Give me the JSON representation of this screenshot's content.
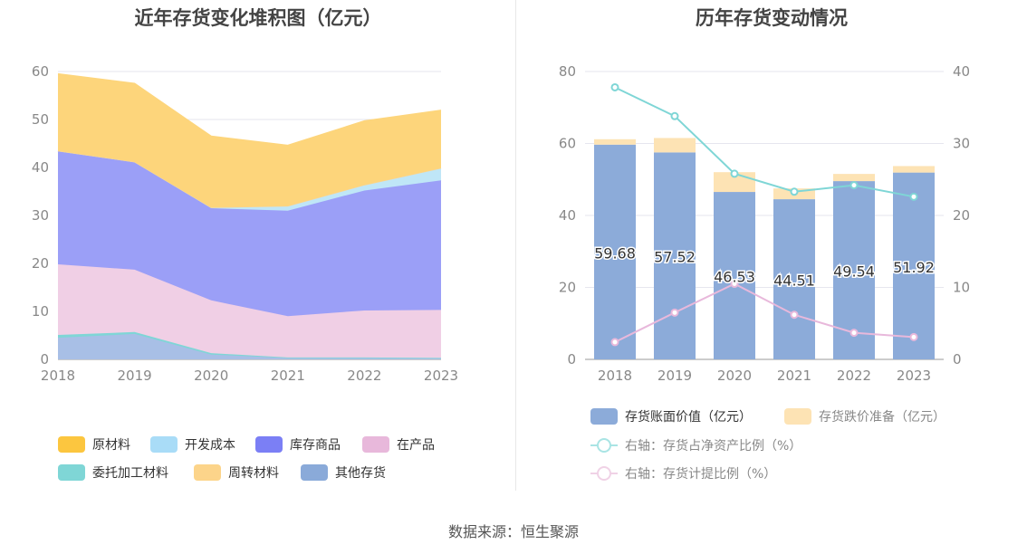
{
  "left_chart": {
    "title": "近年存货变化堆积图（亿元）",
    "legend": [
      {
        "label": "原材料",
        "color": "#fcc63f"
      },
      {
        "label": "开发成本",
        "color": "#a9dcf7"
      },
      {
        "label": "库存商品",
        "color": "#7b7ff5"
      },
      {
        "label": "在产品",
        "color": "#e8b8db"
      },
      {
        "label": "委托加工材料",
        "color": "#7fd6d6"
      },
      {
        "label": "周转材料",
        "color": "#fcd48a"
      },
      {
        "label": "其他存货",
        "color": "#8aaad9"
      }
    ]
  },
  "right_chart": {
    "title": "历年存货变动情况",
    "legend": [
      {
        "label": "存货账面价值（亿元）",
        "color": "#8cabd9"
      },
      {
        "label": "存货跌价准备（亿元）",
        "color": "#fde3b4"
      },
      {
        "label": "右轴：存货占净资产比例（%）",
        "color": "#7fd6d6"
      },
      {
        "label": "右轴：存货计提比例（%）",
        "color": "#e8b8db"
      }
    ]
  },
  "chart_data": [
    {
      "type": "area",
      "stacked": true,
      "title": "近年存货变化堆积图（亿元）",
      "x": [
        "2018",
        "2019",
        "2020",
        "2021",
        "2022",
        "2023"
      ],
      "ylim": [
        0,
        60
      ],
      "yticks": [
        0,
        10,
        20,
        30,
        40,
        50,
        60
      ],
      "grid": true,
      "legend_position": "bottom",
      "series": [
        {
          "name": "其他存货",
          "color": "#a8bfe6",
          "values": [
            4.5,
            5.3,
            1.0,
            0.3,
            0.3,
            0.2
          ]
        },
        {
          "name": "委托加工材料",
          "color": "#7fd6d6",
          "values": [
            0.6,
            0.4,
            0.3,
            0.1,
            0.1,
            0.1
          ]
        },
        {
          "name": "在产品",
          "color": "#f0cfe5",
          "values": [
            14.7,
            13.0,
            11.0,
            8.6,
            9.8,
            10.0
          ]
        },
        {
          "name": "库存商品",
          "color": "#9b9ff7",
          "values": [
            23.6,
            22.4,
            19.2,
            22.0,
            25.0,
            27.0
          ]
        },
        {
          "name": "开发成本",
          "color": "#bfe6f7",
          "values": [
            0.1,
            0.1,
            0.2,
            1.0,
            1.2,
            2.6
          ]
        },
        {
          "name": "周转材料",
          "color": "#fcd48a",
          "values": [
            0.0,
            0.0,
            0.0,
            0.0,
            0.0,
            0.0
          ]
        },
        {
          "name": "原材料",
          "color": "#fdd57b",
          "values": [
            16.0,
            16.3,
            14.8,
            12.6,
            13.3,
            12.0
          ]
        }
      ]
    },
    {
      "type": "bar",
      "stacked": true,
      "title": "历年存货变动情况",
      "categories": [
        "2018",
        "2019",
        "2020",
        "2021",
        "2022",
        "2023"
      ],
      "ylim": [
        0,
        80
      ],
      "yticks": [
        0,
        20,
        40,
        60,
        80
      ],
      "y2lim": [
        0,
        40
      ],
      "y2ticks": [
        0,
        10,
        20,
        30,
        40
      ],
      "grid": true,
      "legend_position": "bottom",
      "series": [
        {
          "name": "存货账面价值（亿元）",
          "axis": "left",
          "color": "#8cabd9",
          "values": [
            59.68,
            57.52,
            46.53,
            44.51,
            49.54,
            51.92
          ],
          "labels": [
            "59.68",
            "57.52",
            "46.53",
            "44.51",
            "49.54",
            "51.92"
          ]
        },
        {
          "name": "存货跌价准备（亿元）",
          "axis": "left",
          "color": "#fde3b4",
          "values": [
            1.5,
            4.0,
            5.5,
            3.0,
            2.0,
            1.8
          ]
        },
        {
          "name": "右轴：存货占净资产比例（%）",
          "axis": "right",
          "type": "line",
          "color": "#7fd6d6",
          "values": [
            37.8,
            33.8,
            25.8,
            23.3,
            24.2,
            22.6
          ]
        },
        {
          "name": "右轴：存货计提比例（%）",
          "axis": "right",
          "type": "line",
          "color": "#e8b8db",
          "values": [
            2.4,
            6.5,
            10.5,
            6.2,
            3.7,
            3.1
          ]
        }
      ]
    }
  ],
  "footer": "数据来源：恒生聚源"
}
